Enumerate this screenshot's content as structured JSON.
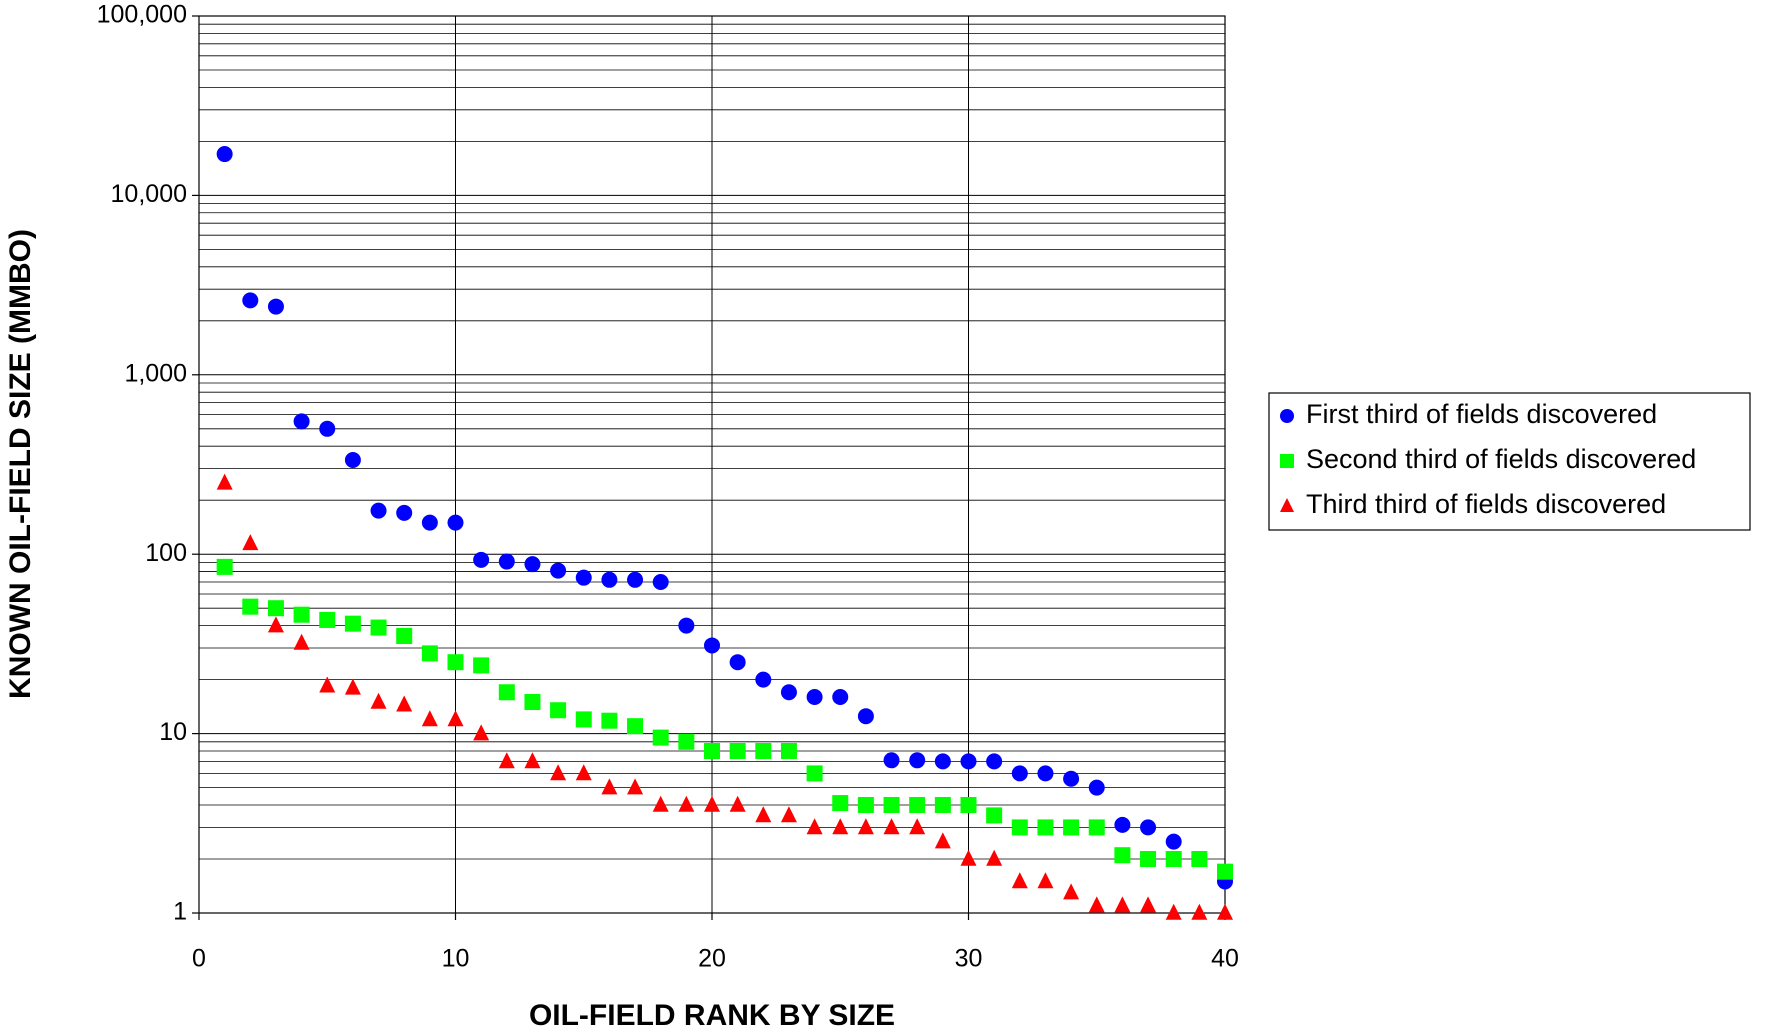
{
  "chart_data": {
    "type": "scatter",
    "xlabel": "OIL-FIELD RANK BY SIZE",
    "ylabel": "KNOWN OIL-FIELD SIZE (MMBO)",
    "x": [
      1,
      2,
      3,
      4,
      5,
      6,
      7,
      8,
      9,
      10,
      11,
      12,
      13,
      14,
      15,
      16,
      17,
      18,
      19,
      20,
      21,
      22,
      23,
      24,
      25,
      26,
      27,
      28,
      29,
      30,
      31,
      32,
      33,
      34,
      35,
      36,
      37,
      38,
      39,
      40
    ],
    "series": [
      {
        "name": "First third of fields discovered",
        "color": "#0000ff",
        "marker": "circle",
        "values": [
          17000,
          2600,
          2400,
          550,
          500,
          335,
          175,
          170,
          150,
          150,
          93,
          91,
          88,
          81,
          74,
          72,
          72,
          70,
          40,
          31,
          25,
          20,
          17,
          16,
          16,
          12.5,
          7.1,
          7.1,
          7,
          7,
          7,
          6,
          6,
          5.6,
          5,
          3.1,
          3,
          2.5,
          null,
          1.5
        ]
      },
      {
        "name": "Second third of fields discovered",
        "color": "#00ff00",
        "marker": "square",
        "values": [
          85,
          51,
          50,
          46,
          43,
          41,
          39,
          35,
          28,
          25,
          24,
          17,
          15,
          13.5,
          12,
          11.8,
          11,
          9.5,
          9,
          8,
          8,
          8,
          8,
          6,
          4.1,
          4,
          4,
          4,
          4,
          4,
          3.5,
          3,
          3,
          3,
          3,
          2.1,
          2,
          2,
          2,
          1.7
        ]
      },
      {
        "name": "Third third of fields discovered",
        "color": "#ff0000",
        "marker": "triangle",
        "values": [
          250,
          115,
          40,
          32,
          18.5,
          18,
          15,
          14.5,
          12,
          12,
          10,
          7,
          7,
          6,
          6,
          5,
          5,
          4,
          4,
          4,
          4,
          3.5,
          3.5,
          3,
          3,
          3,
          3,
          3,
          2.5,
          2,
          2,
          1.5,
          1.5,
          1.3,
          1.1,
          1.1,
          1.1,
          1,
          1,
          1
        ]
      }
    ],
    "xlim": [
      0,
      40
    ],
    "xticks": [
      0,
      10,
      20,
      30,
      40
    ],
    "ylim": [
      1,
      100000
    ],
    "yticks": [
      1,
      10,
      100,
      {
        "value": 1000,
        "label": "1,000"
      },
      {
        "value": 10000,
        "label": "10,000"
      },
      {
        "value": 100000,
        "label": "100,000"
      }
    ],
    "log_scale": true,
    "grid": true,
    "legend": "right"
  }
}
